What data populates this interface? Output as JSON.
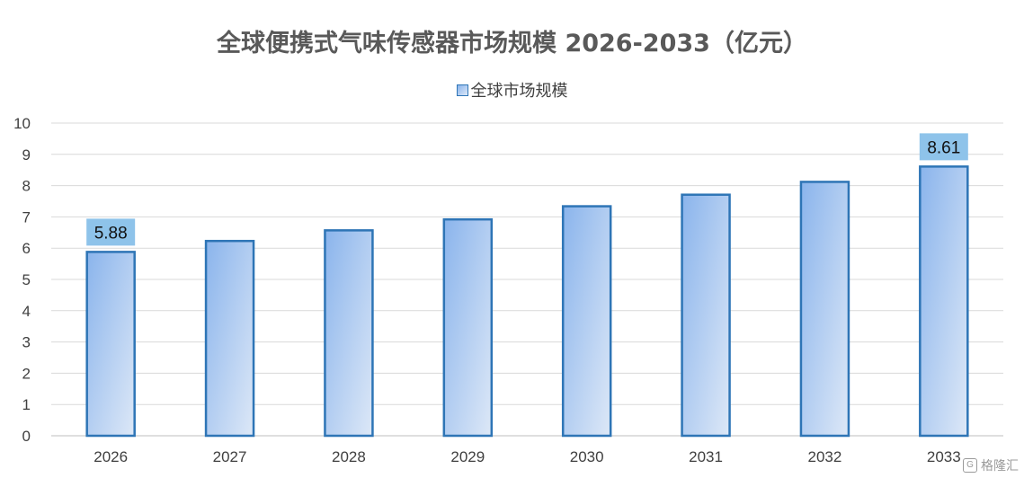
{
  "chart_data": {
    "type": "bar",
    "title": "全球便携式气味传感器市场规模 2026-2033（亿元）",
    "categories": [
      "2026",
      "2027",
      "2028",
      "2029",
      "2030",
      "2031",
      "2032",
      "2033"
    ],
    "series": [
      {
        "name": "全球市场规模",
        "values": [
          5.88,
          6.23,
          6.57,
          6.92,
          7.34,
          7.71,
          8.12,
          8.61
        ]
      }
    ],
    "data_labels": [
      {
        "category": "2026",
        "text": "5.88"
      },
      {
        "category": "2033",
        "text": "8.61"
      }
    ],
    "ylim": [
      0,
      10
    ],
    "yticks": [
      0,
      1,
      2,
      3,
      4,
      5,
      6,
      7,
      8,
      9,
      10
    ],
    "grid": true,
    "legend_position": "top-center",
    "colors": {
      "bar_fill_start": "#8ab4ec",
      "bar_fill_end": "#dde8f7",
      "bar_stroke": "#2e75b6",
      "label_bg": "#8ec3ea",
      "grid": "#d9d9d9"
    }
  },
  "watermark": {
    "text": "格隆汇"
  }
}
